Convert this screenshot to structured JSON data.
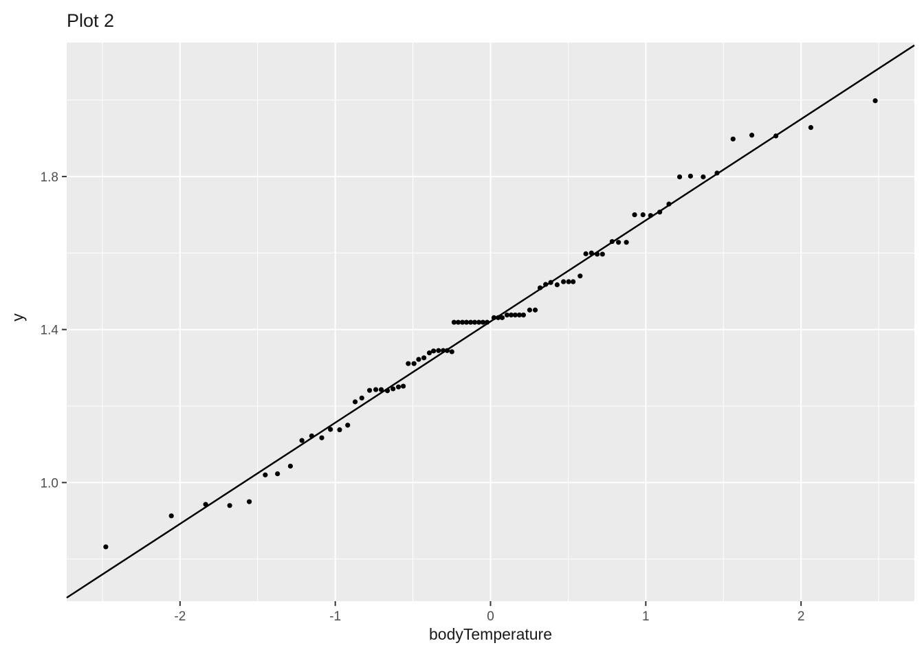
{
  "chart_data": {
    "type": "scatter",
    "title": "Plot 2",
    "xlabel": "bodyTemperature",
    "ylabel": "y",
    "xlim": [
      -2.73,
      2.73
    ],
    "ylim": [
      0.69,
      2.15
    ],
    "grid": "on",
    "legend": "none",
    "x_axis": {
      "tick_values": [
        -2,
        -1,
        0,
        1,
        2
      ],
      "tick_labels": [
        "-2",
        "-1",
        "0",
        "1",
        "2"
      ],
      "minor_breaks": [
        -2.5,
        -1.5,
        -0.5,
        0.5,
        1.5,
        2.5
      ]
    },
    "y_axis": {
      "tick_values": [
        1.0,
        1.4,
        1.8
      ],
      "tick_labels": [
        "1.0",
        "1.4",
        "1.8"
      ],
      "minor_breaks": [
        0.8,
        1.2,
        1.6,
        2.0
      ]
    },
    "trend_line": {
      "x1": -2.73,
      "y1": 0.699,
      "x2": 2.73,
      "y2": 2.143,
      "slope": 0.264,
      "intercept": 1.421
    },
    "points": [
      [
        -2.478,
        0.832
      ],
      [
        -2.056,
        0.913
      ],
      [
        -1.835,
        0.943
      ],
      [
        -1.68,
        0.94
      ],
      [
        -1.554,
        0.95
      ],
      [
        -1.451,
        1.02
      ],
      [
        -1.372,
        1.023
      ],
      [
        -1.289,
        1.043
      ],
      [
        -1.215,
        1.11
      ],
      [
        -1.152,
        1.122
      ],
      [
        -1.087,
        1.117
      ],
      [
        -1.031,
        1.139
      ],
      [
        -0.972,
        1.138
      ],
      [
        -0.92,
        1.15
      ],
      [
        -0.872,
        1.211
      ],
      [
        -0.829,
        1.221
      ],
      [
        -0.779,
        1.241
      ],
      [
        -0.739,
        1.243
      ],
      [
        -0.704,
        1.243
      ],
      [
        -0.664,
        1.24
      ],
      [
        -0.628,
        1.245
      ],
      [
        -0.593,
        1.25
      ],
      [
        -0.562,
        1.252
      ],
      [
        -0.53,
        1.311
      ],
      [
        -0.493,
        1.311
      ],
      [
        -0.463,
        1.322
      ],
      [
        -0.429,
        1.326
      ],
      [
        -0.394,
        1.339
      ],
      [
        -0.367,
        1.344
      ],
      [
        -0.335,
        1.345
      ],
      [
        -0.305,
        1.345
      ],
      [
        -0.279,
        1.345
      ],
      [
        -0.249,
        1.342
      ],
      [
        -0.235,
        1.419
      ],
      [
        -0.208,
        1.419
      ],
      [
        -0.181,
        1.419
      ],
      [
        -0.155,
        1.419
      ],
      [
        -0.128,
        1.419
      ],
      [
        -0.102,
        1.419
      ],
      [
        -0.075,
        1.419
      ],
      [
        -0.049,
        1.419
      ],
      [
        -0.022,
        1.419
      ],
      [
        0.022,
        1.431
      ],
      [
        0.049,
        1.431
      ],
      [
        0.075,
        1.431
      ],
      [
        0.106,
        1.438
      ],
      [
        0.133,
        1.438
      ],
      [
        0.159,
        1.438
      ],
      [
        0.186,
        1.438
      ],
      [
        0.212,
        1.438
      ],
      [
        0.252,
        1.451
      ],
      [
        0.288,
        1.451
      ],
      [
        0.319,
        1.509
      ],
      [
        0.355,
        1.518
      ],
      [
        0.388,
        1.523
      ],
      [
        0.429,
        1.517
      ],
      [
        0.47,
        1.525
      ],
      [
        0.503,
        1.525
      ],
      [
        0.532,
        1.525
      ],
      [
        0.577,
        1.54
      ],
      [
        0.614,
        1.598
      ],
      [
        0.65,
        1.6
      ],
      [
        0.687,
        1.597
      ],
      [
        0.721,
        1.597
      ],
      [
        0.783,
        1.63
      ],
      [
        0.824,
        1.628
      ],
      [
        0.875,
        1.628
      ],
      [
        0.928,
        1.7
      ],
      [
        0.982,
        1.7
      ],
      [
        1.031,
        1.698
      ],
      [
        1.09,
        1.707
      ],
      [
        1.149,
        1.728
      ],
      [
        1.218,
        1.799
      ],
      [
        1.288,
        1.801
      ],
      [
        1.37,
        1.799
      ],
      [
        1.459,
        1.809
      ],
      [
        1.562,
        1.898
      ],
      [
        1.683,
        1.908
      ],
      [
        1.838,
        1.906
      ],
      [
        2.063,
        1.928
      ],
      [
        2.478,
        1.998
      ]
    ],
    "colors": {
      "panel_bg": "#EBEBEB",
      "grid_major": "#FFFFFF",
      "grid_minor": "#FFFFFF",
      "point": "#000000",
      "line": "#000000",
      "tick_label": "#4D4D4D",
      "tick_mark": "#333333",
      "title_text": "#1A1A1A"
    }
  }
}
